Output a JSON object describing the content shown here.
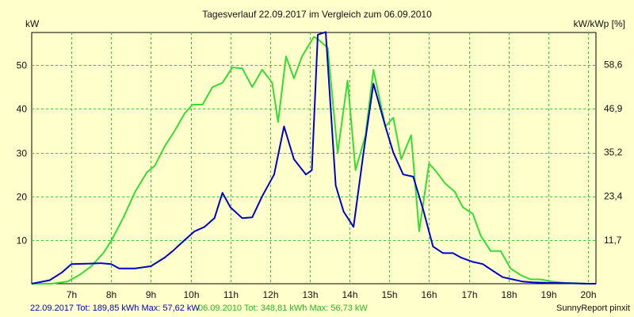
{
  "chart_data": {
    "type": "line",
    "title": "Tagesverlauf 22.09.2017 im Vergleich zum 06.09.2010",
    "ylabel_left": "kW",
    "ylabel_right": "kW/kWp [%]",
    "x_range": [
      6.0,
      20.2
    ],
    "ylim_left": [
      0,
      57.5
    ],
    "ylim_right": [
      0,
      67.2
    ],
    "x_ticks": [
      {
        "x": 7,
        "label": "7h"
      },
      {
        "x": 8,
        "label": "8h"
      },
      {
        "x": 9,
        "label": "9h"
      },
      {
        "x": 10,
        "label": "10h"
      },
      {
        "x": 11,
        "label": "11h"
      },
      {
        "x": 12,
        "label": "12h"
      },
      {
        "x": 13,
        "label": "13h"
      },
      {
        "x": 14,
        "label": "14h"
      },
      {
        "x": 15,
        "label": "15h"
      },
      {
        "x": 16,
        "label": "16h"
      },
      {
        "x": 17,
        "label": "17h"
      },
      {
        "x": 18,
        "label": "18h"
      },
      {
        "x": 19,
        "label": "19h"
      },
      {
        "x": 20,
        "label": "20h"
      }
    ],
    "y_ticks_left": [
      {
        "v": 10,
        "label": "10"
      },
      {
        "v": 20,
        "label": "20"
      },
      {
        "v": 30,
        "label": "30"
      },
      {
        "v": 40,
        "label": "40"
      },
      {
        "v": 50,
        "label": "50"
      }
    ],
    "y_ticks_right": [
      {
        "v": 11.7,
        "label": "11,7"
      },
      {
        "v": 23.4,
        "label": "23,4"
      },
      {
        "v": 35.2,
        "label": "35,2"
      },
      {
        "v": 46.9,
        "label": "46,9"
      },
      {
        "v": 58.6,
        "label": "58,6"
      }
    ],
    "grid": true,
    "series": [
      {
        "name": "22.09.2017",
        "color": "#0000cc",
        "x": [
          6.0,
          6.45,
          6.75,
          7.0,
          7.45,
          7.75,
          8.0,
          8.2,
          8.6,
          9.0,
          9.35,
          9.55,
          9.85,
          10.1,
          10.35,
          10.6,
          10.8,
          11.0,
          11.3,
          11.55,
          11.8,
          12.1,
          12.35,
          12.6,
          12.9,
          13.05,
          13.2,
          13.4,
          13.65,
          13.85,
          14.1,
          14.35,
          14.6,
          14.9,
          15.1,
          15.35,
          15.6,
          15.85,
          16.1,
          16.35,
          16.6,
          16.8,
          17.1,
          17.35,
          17.6,
          17.85,
          18.1,
          18.35,
          18.6,
          19.0,
          19.5,
          20.0,
          20.2
        ],
        "y": [
          0.0,
          0.8,
          2.5,
          4.5,
          4.6,
          4.7,
          4.5,
          3.5,
          3.5,
          4.0,
          6.0,
          7.5,
          10.0,
          12.0,
          13.0,
          15.0,
          20.8,
          17.5,
          15.0,
          15.2,
          20.0,
          25.0,
          36.0,
          28.5,
          25.0,
          26.0,
          57.0,
          57.6,
          22.5,
          16.5,
          13.0,
          30.0,
          45.8,
          36.0,
          30.0,
          25.0,
          24.5,
          17.0,
          8.5,
          7.0,
          7.0,
          6.0,
          5.0,
          4.5,
          3.0,
          1.5,
          1.0,
          0.5,
          0.3,
          0.2,
          0.1,
          0.0,
          0.0
        ]
      },
      {
        "name": "06.09.2010",
        "color": "#33dd33",
        "x": [
          6.0,
          6.5,
          6.9,
          7.2,
          7.5,
          7.8,
          8.0,
          8.3,
          8.6,
          8.9,
          9.1,
          9.35,
          9.6,
          9.85,
          10.05,
          10.3,
          10.55,
          10.8,
          11.05,
          11.3,
          11.55,
          11.8,
          12.05,
          12.2,
          12.4,
          12.6,
          12.8,
          13.1,
          13.2,
          13.45,
          13.7,
          13.95,
          14.15,
          14.4,
          14.6,
          14.9,
          15.1,
          15.3,
          15.55,
          15.75,
          16.0,
          16.15,
          16.4,
          16.65,
          16.85,
          17.1,
          17.3,
          17.55,
          17.8,
          18.05,
          18.3,
          18.55,
          18.8,
          19.1,
          19.4,
          19.7,
          20.0,
          20.2
        ],
        "y": [
          0.0,
          0.0,
          0.5,
          2.0,
          4.0,
          7.0,
          9.8,
          15.0,
          21.0,
          25.5,
          27.0,
          31.5,
          35.0,
          39.0,
          41.0,
          41.0,
          45.0,
          46.0,
          49.5,
          49.3,
          45.0,
          49.0,
          46.0,
          37.0,
          52.0,
          47.0,
          52.0,
          56.5,
          56.0,
          54.0,
          30.0,
          46.5,
          26.0,
          34.0,
          49.0,
          36.0,
          38.0,
          28.5,
          34.0,
          12.0,
          27.5,
          26.0,
          23.0,
          21.0,
          17.5,
          16.0,
          11.0,
          7.5,
          7.5,
          3.5,
          2.0,
          1.0,
          1.0,
          0.5,
          0.2,
          0.1,
          0.0,
          0.0
        ]
      }
    ]
  },
  "footer": {
    "series1_summary": "22.09.2017 Tot: 189,85 kWh Max: 57,62 kW",
    "series2_summary": "06.09.2010 Tot: 348,81 kWh Max: 56,73 kW",
    "credit": "SunnyReport pinxit"
  },
  "colors": {
    "background": "#ffffcc",
    "grid": "#33cc33",
    "axis": "#000000"
  }
}
